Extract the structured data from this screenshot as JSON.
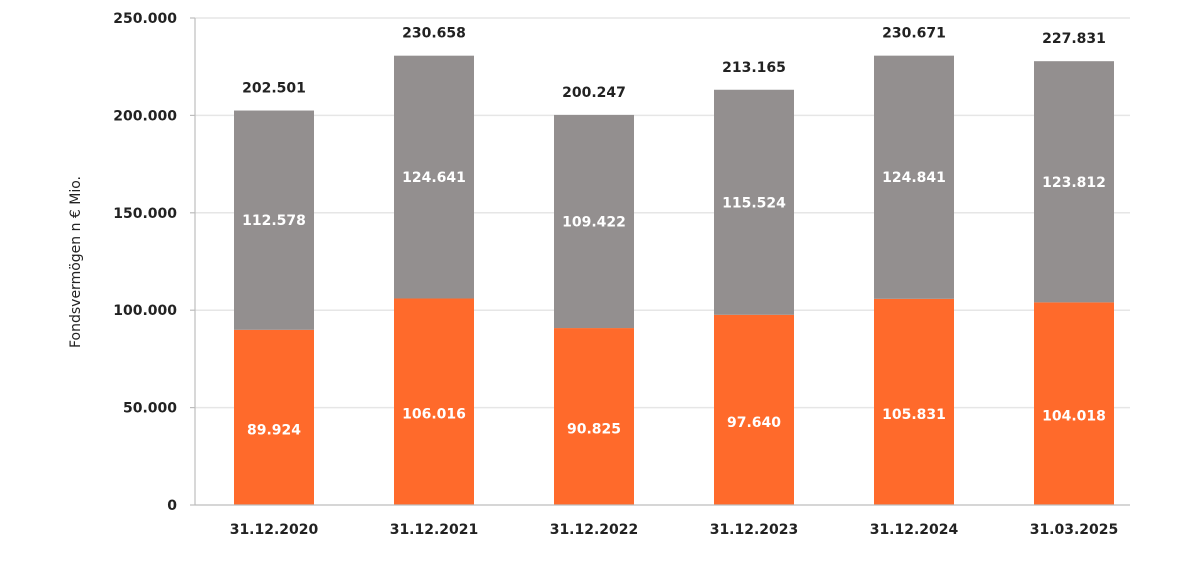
{
  "chart_data": {
    "type": "bar",
    "stacked": true,
    "categories": [
      "31.12.2020",
      "31.12.2021",
      "31.12.2022",
      "31.12.2023",
      "31.12.2024",
      "31.03.2025"
    ],
    "series": [
      {
        "values": [
          89.924,
          106.016,
          90.825,
          97.64,
          105.831,
          104.018
        ],
        "labels": [
          "89.924",
          "106.016",
          "90.825",
          "97.640",
          "105.831",
          "104.018"
        ],
        "color": "#ff6a2b"
      },
      {
        "values": [
          112.578,
          124.641,
          109.422,
          115.524,
          124.841,
          123.812
        ],
        "labels": [
          "112.578",
          "124.641",
          "109.422",
          "115.524",
          "124.841",
          "123.812"
        ],
        "color": "#938f8f"
      }
    ],
    "totals": [
      202.501,
      230.658,
      200.247,
      213.165,
      230.671,
      227.831
    ],
    "total_labels": [
      "202.501",
      "230.658",
      "200.247",
      "213.165",
      "230.671",
      "227.831"
    ],
    "ylabel": "Fondsvermögen n € Mio.",
    "ylim": [
      0,
      250
    ],
    "yticks": [
      0,
      50,
      100,
      150,
      200,
      250
    ],
    "ytick_labels": [
      "0",
      "50.000",
      "100.000",
      "150.000",
      "200.000",
      "250.000"
    ],
    "grid": true,
    "legend": "none"
  }
}
